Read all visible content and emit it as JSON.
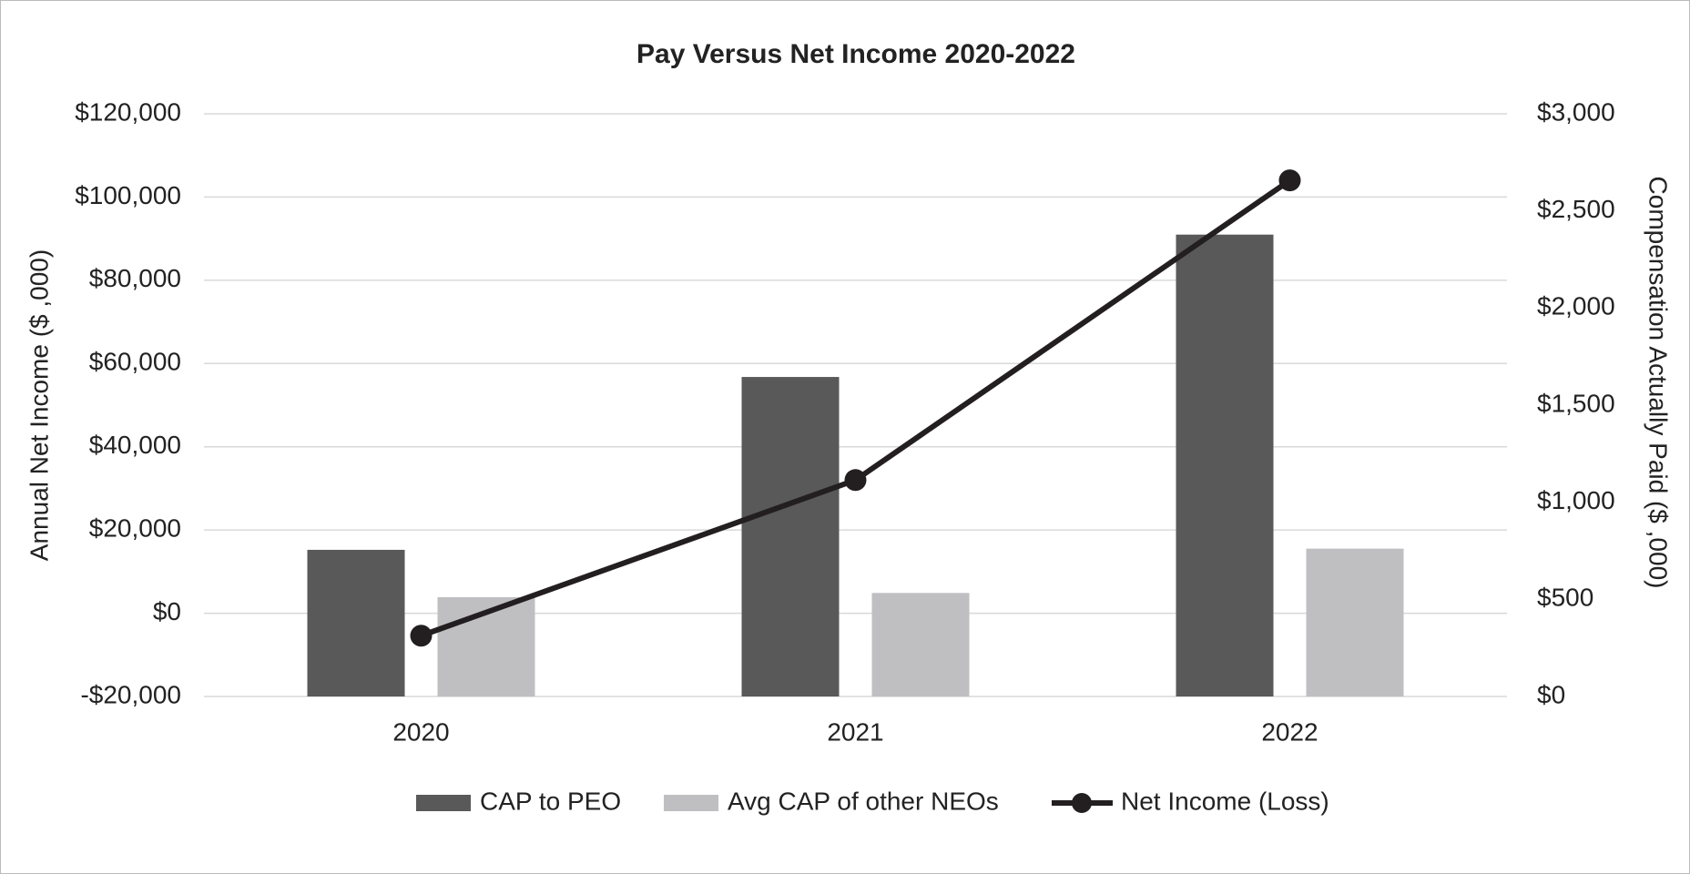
{
  "chart_data": {
    "type": "bar-line",
    "title": "Pay Versus Net Income 2020-2022",
    "y_label": "Annual Net Income ($ ,000)",
    "y2_label": "Compensation Actually Paid ($ ,000)",
    "categories": [
      "2020",
      "2021",
      "2022"
    ],
    "series": [
      {
        "name": "CAP to PEO",
        "type": "bar",
        "axis": "y2",
        "color": "#595959",
        "values": [
          755,
          1645,
          2378
        ]
      },
      {
        "name": "Avg CAP of other NEOs",
        "type": "bar",
        "axis": "y2",
        "color": "#bfbfc2",
        "values": [
          511,
          533,
          761
        ]
      },
      {
        "name": "Net Income (Loss)",
        "type": "line",
        "axis": "y",
        "color": "#231f20",
        "values": [
          -5400,
          32000,
          104000
        ]
      }
    ],
    "ylim": [
      -20000,
      120000
    ],
    "yticks": [
      {
        "value": -20000,
        "label": "-$20,000"
      },
      {
        "value": 0,
        "label": "$0"
      },
      {
        "value": 20000,
        "label": "$20,000"
      },
      {
        "value": 40000,
        "label": "$40,000"
      },
      {
        "value": 60000,
        "label": "$60,000"
      },
      {
        "value": 80000,
        "label": "$80,000"
      },
      {
        "value": 100000,
        "label": "$100,000"
      },
      {
        "value": 120000,
        "label": "$120,000"
      }
    ],
    "y2lim": [
      0,
      3000
    ],
    "y2ticks": [
      {
        "value": 0,
        "label": "$0"
      },
      {
        "value": 500,
        "label": "$500"
      },
      {
        "value": 1000,
        "label": "$1,000"
      },
      {
        "value": 1500,
        "label": "$1,500"
      },
      {
        "value": 2000,
        "label": "$2,000"
      },
      {
        "value": 2500,
        "label": "$2,500"
      },
      {
        "value": 3000,
        "label": "$3,000"
      }
    ],
    "grid": true,
    "legend": "bottom"
  }
}
